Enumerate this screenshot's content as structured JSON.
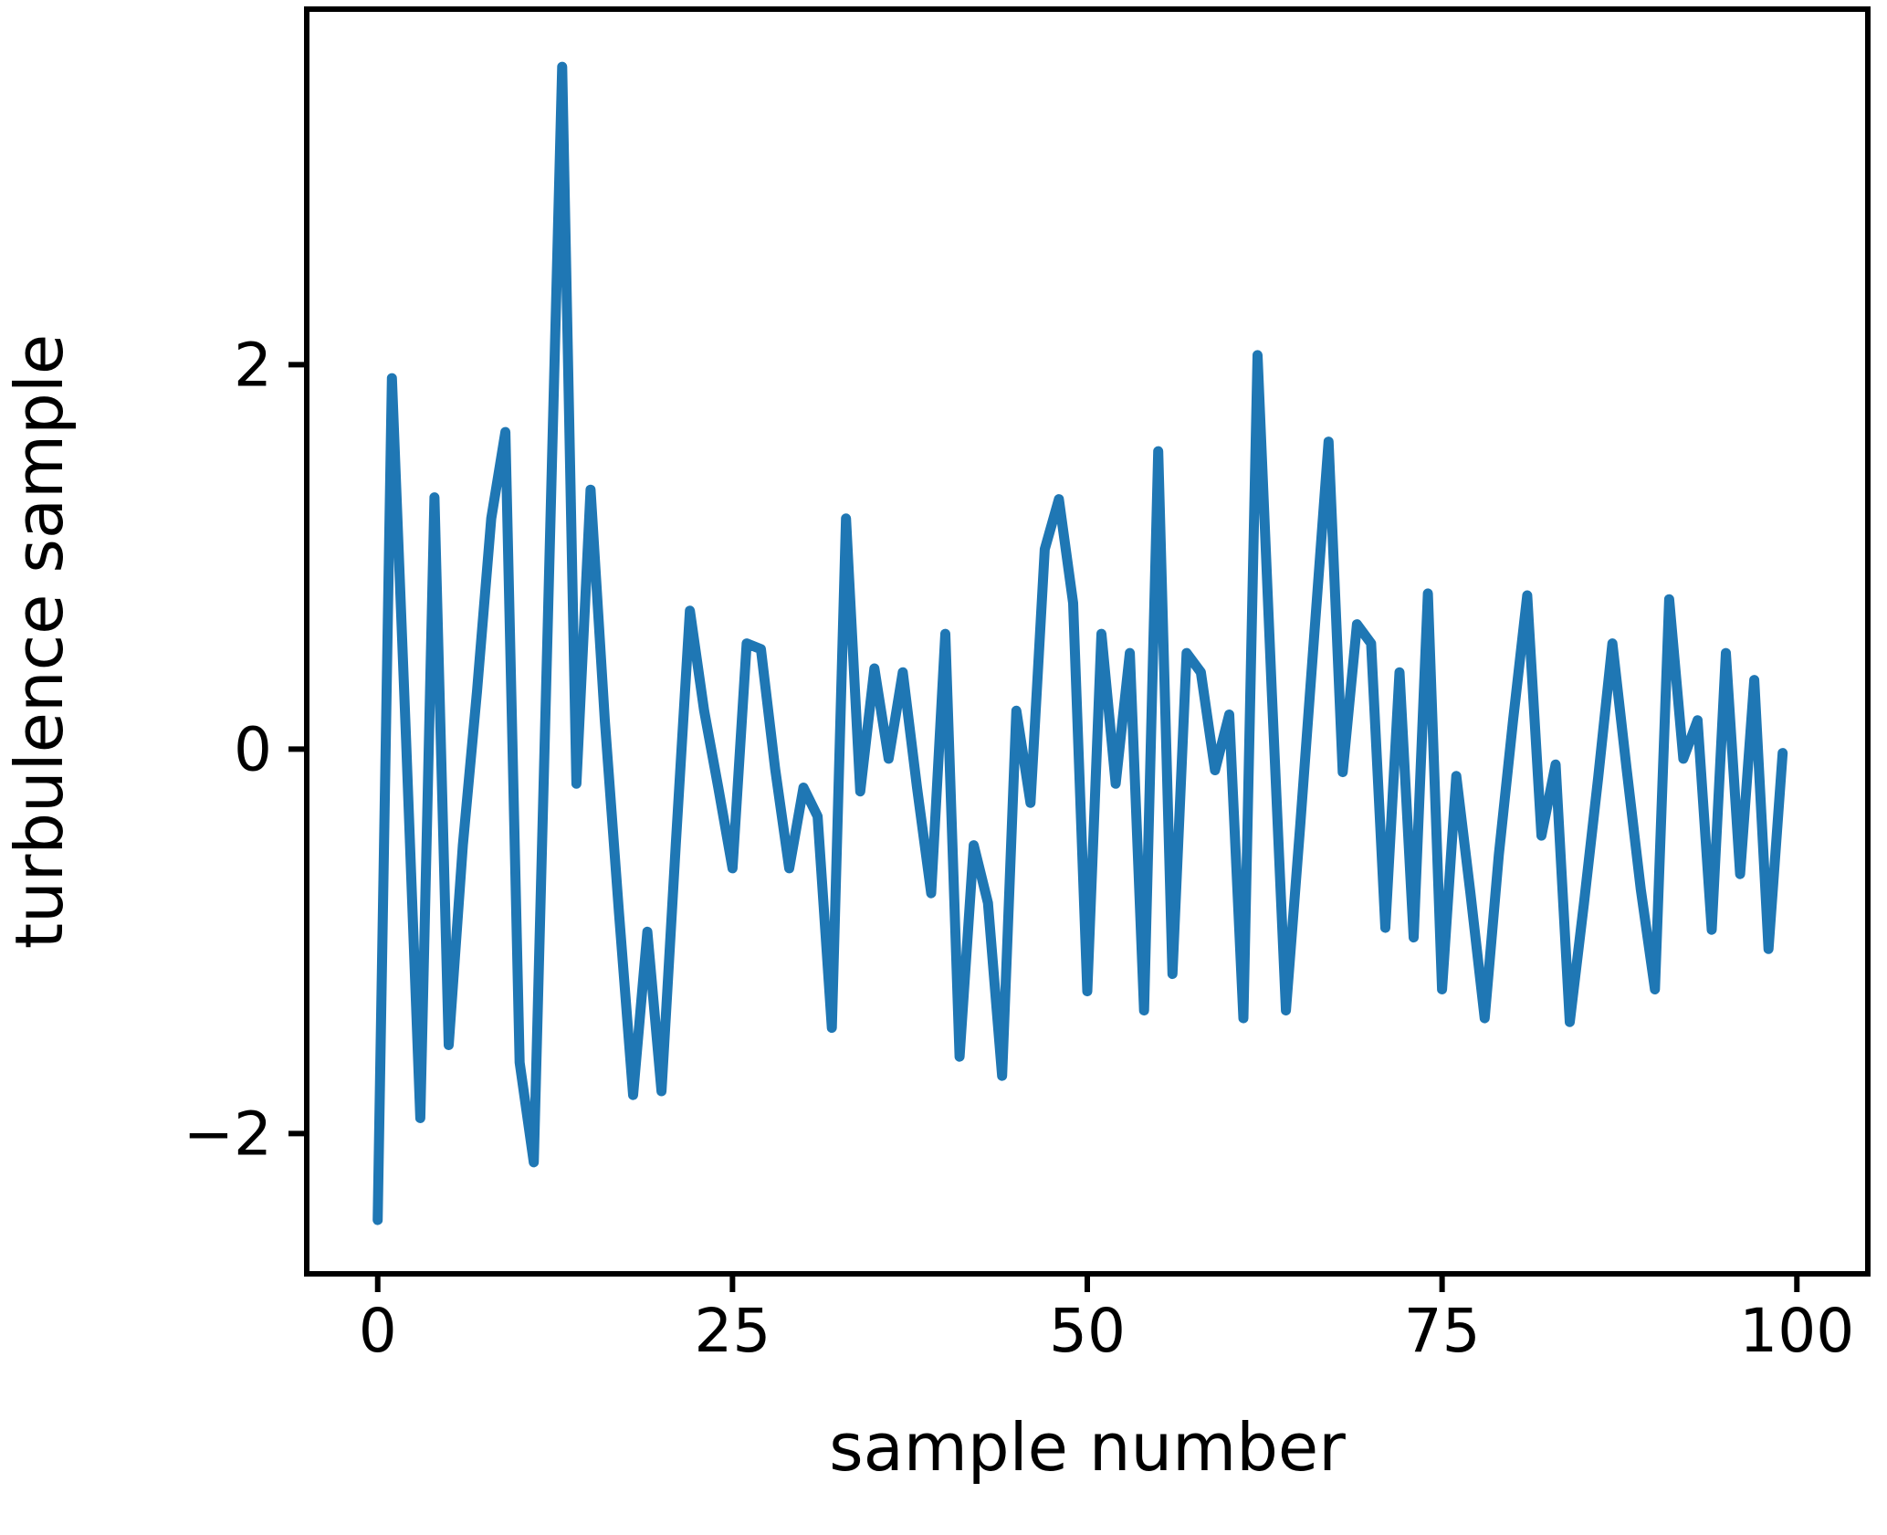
{
  "chart_data": {
    "type": "line",
    "title": "",
    "xlabel": "sample number",
    "ylabel": "turbulence sample",
    "x_ticks": [
      0,
      25,
      50,
      75,
      100
    ],
    "y_ticks": [
      -2,
      0,
      2
    ],
    "xlim": [
      -5,
      105
    ],
    "ylim": [
      -2.73,
      3.85
    ],
    "grid": false,
    "legend": "none",
    "line_color": "#1f77b4",
    "axes_color": "#000000",
    "background_color": "#ffffff",
    "x": [
      0,
      1,
      2,
      3,
      4,
      5,
      6,
      7,
      8,
      9,
      10,
      11,
      12,
      13,
      14,
      15,
      16,
      17,
      18,
      19,
      20,
      21,
      22,
      23,
      24,
      25,
      26,
      27,
      28,
      29,
      30,
      31,
      32,
      33,
      34,
      35,
      36,
      37,
      38,
      39,
      40,
      41,
      42,
      43,
      44,
      45,
      46,
      47,
      48,
      49,
      50,
      51,
      52,
      53,
      54,
      55,
      56,
      57,
      58,
      59,
      60,
      61,
      62,
      63,
      64,
      65,
      66,
      67,
      68,
      69,
      70,
      71,
      72,
      73,
      74,
      75,
      76,
      77,
      78,
      79,
      80,
      81,
      82,
      83,
      84,
      85,
      86,
      87,
      88,
      89,
      90,
      91,
      92,
      93,
      94,
      95,
      96,
      97,
      98,
      99
    ],
    "values": [
      -2.45,
      1.93,
      0.05,
      -1.92,
      1.31,
      -1.54,
      -0.5,
      0.3,
      1.2,
      1.65,
      -1.63,
      -2.15,
      0.7,
      3.55,
      -0.18,
      1.35,
      0.15,
      -0.85,
      -1.8,
      -0.95,
      -1.78,
      -0.5,
      0.72,
      0.2,
      -0.2,
      -0.62,
      0.55,
      0.52,
      -0.1,
      -0.62,
      -0.2,
      -0.35,
      -1.45,
      1.2,
      -0.22,
      0.42,
      -0.05,
      0.4,
      -0.2,
      -0.75,
      0.6,
      -1.6,
      -0.5,
      -0.8,
      -1.7,
      0.2,
      -0.28,
      1.04,
      1.3,
      0.76,
      -1.26,
      0.6,
      -0.18,
      0.5,
      -1.36,
      1.55,
      -1.17,
      0.5,
      0.4,
      -0.11,
      0.18,
      -1.4,
      2.05,
      0.3,
      -1.36,
      -0.4,
      0.6,
      1.6,
      -0.12,
      0.65,
      0.55,
      -0.93,
      0.4,
      -0.98,
      0.81,
      -1.25,
      -0.14,
      -0.75,
      -1.4,
      -0.55,
      0.15,
      0.8,
      -0.45,
      -0.08,
      -1.42,
      -0.8,
      -0.15,
      0.55,
      -0.1,
      -0.73,
      -1.25,
      0.78,
      -0.05,
      0.15,
      -0.94,
      0.5,
      -0.65,
      0.36,
      -1.04,
      -0.02
    ]
  }
}
